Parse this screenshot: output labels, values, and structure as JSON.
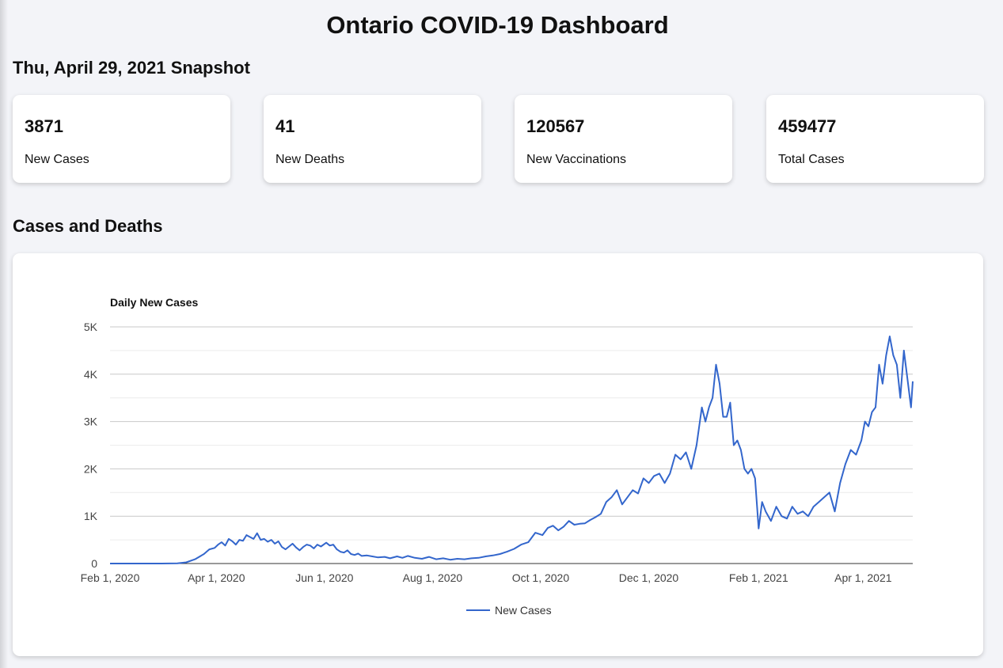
{
  "header": {
    "title": "Ontario COVID-19 Dashboard"
  },
  "snapshot": {
    "title": "Thu, April 29, 2021 Snapshot",
    "cards": [
      {
        "value": "3871",
        "label": "New Cases"
      },
      {
        "value": "41",
        "label": "New Deaths"
      },
      {
        "value": "120567",
        "label": "New Vaccinations"
      },
      {
        "value": "459477",
        "label": "Total Cases"
      }
    ]
  },
  "section": {
    "title": "Cases and Deaths"
  },
  "chart_data": {
    "type": "line",
    "title": "Daily New Cases",
    "xlabel": "",
    "ylabel": "",
    "x_range": [
      "2020-02-01",
      "2021-04-29"
    ],
    "ylim": [
      0,
      5000
    ],
    "y_ticks": [
      {
        "value": 0,
        "label": "0"
      },
      {
        "value": 1000,
        "label": "1K"
      },
      {
        "value": 2000,
        "label": "2K"
      },
      {
        "value": 3000,
        "label": "3K"
      },
      {
        "value": 4000,
        "label": "4K"
      },
      {
        "value": 5000,
        "label": "5K"
      }
    ],
    "x_ticks": [
      {
        "date": "2020-02-01",
        "label": "Feb 1, 2020"
      },
      {
        "date": "2020-04-01",
        "label": "Apr 1, 2020"
      },
      {
        "date": "2020-06-01",
        "label": "Jun 1, 2020"
      },
      {
        "date": "2020-08-01",
        "label": "Aug 1, 2020"
      },
      {
        "date": "2020-10-01",
        "label": "Oct 1, 2020"
      },
      {
        "date": "2020-12-01",
        "label": "Dec 1, 2020"
      },
      {
        "date": "2021-02-01",
        "label": "Feb 1, 2021"
      },
      {
        "date": "2021-04-01",
        "label": "Apr 1, 2021"
      }
    ],
    "grid": true,
    "legend": "bottom",
    "series": [
      {
        "name": "New Cases",
        "color": "#3366cc",
        "points": [
          [
            "2020-02-01",
            0
          ],
          [
            "2020-03-01",
            0
          ],
          [
            "2020-03-10",
            5
          ],
          [
            "2020-03-15",
            25
          ],
          [
            "2020-03-20",
            90
          ],
          [
            "2020-03-25",
            200
          ],
          [
            "2020-03-28",
            300
          ],
          [
            "2020-03-31",
            330
          ],
          [
            "2020-04-02",
            400
          ],
          [
            "2020-04-04",
            450
          ],
          [
            "2020-04-06",
            380
          ],
          [
            "2020-04-08",
            520
          ],
          [
            "2020-04-10",
            470
          ],
          [
            "2020-04-12",
            400
          ],
          [
            "2020-04-14",
            500
          ],
          [
            "2020-04-16",
            480
          ],
          [
            "2020-04-18",
            600
          ],
          [
            "2020-04-20",
            560
          ],
          [
            "2020-04-22",
            520
          ],
          [
            "2020-04-24",
            640
          ],
          [
            "2020-04-26",
            500
          ],
          [
            "2020-04-28",
            520
          ],
          [
            "2020-04-30",
            460
          ],
          [
            "2020-05-02",
            500
          ],
          [
            "2020-05-04",
            420
          ],
          [
            "2020-05-06",
            470
          ],
          [
            "2020-05-08",
            350
          ],
          [
            "2020-05-10",
            300
          ],
          [
            "2020-05-12",
            360
          ],
          [
            "2020-05-14",
            420
          ],
          [
            "2020-05-16",
            340
          ],
          [
            "2020-05-18",
            280
          ],
          [
            "2020-05-20",
            350
          ],
          [
            "2020-05-22",
            400
          ],
          [
            "2020-05-24",
            380
          ],
          [
            "2020-05-26",
            320
          ],
          [
            "2020-05-28",
            400
          ],
          [
            "2020-05-30",
            360
          ],
          [
            "2020-06-02",
            440
          ],
          [
            "2020-06-04",
            380
          ],
          [
            "2020-06-06",
            400
          ],
          [
            "2020-06-08",
            300
          ],
          [
            "2020-06-10",
            250
          ],
          [
            "2020-06-12",
            230
          ],
          [
            "2020-06-14",
            280
          ],
          [
            "2020-06-16",
            200
          ],
          [
            "2020-06-18",
            180
          ],
          [
            "2020-06-20",
            210
          ],
          [
            "2020-06-22",
            160
          ],
          [
            "2020-06-25",
            170
          ],
          [
            "2020-06-28",
            150
          ],
          [
            "2020-07-01",
            130
          ],
          [
            "2020-07-05",
            140
          ],
          [
            "2020-07-08",
            110
          ],
          [
            "2020-07-12",
            150
          ],
          [
            "2020-07-15",
            120
          ],
          [
            "2020-07-18",
            160
          ],
          [
            "2020-07-22",
            120
          ],
          [
            "2020-07-26",
            100
          ],
          [
            "2020-07-30",
            140
          ],
          [
            "2020-08-03",
            90
          ],
          [
            "2020-08-07",
            110
          ],
          [
            "2020-08-11",
            80
          ],
          [
            "2020-08-15",
            100
          ],
          [
            "2020-08-19",
            90
          ],
          [
            "2020-08-23",
            110
          ],
          [
            "2020-08-27",
            120
          ],
          [
            "2020-08-31",
            150
          ],
          [
            "2020-09-04",
            170
          ],
          [
            "2020-09-08",
            200
          ],
          [
            "2020-09-12",
            250
          ],
          [
            "2020-09-16",
            310
          ],
          [
            "2020-09-20",
            400
          ],
          [
            "2020-09-24",
            450
          ],
          [
            "2020-09-28",
            650
          ],
          [
            "2020-10-02",
            600
          ],
          [
            "2020-10-05",
            750
          ],
          [
            "2020-10-08",
            800
          ],
          [
            "2020-10-11",
            700
          ],
          [
            "2020-10-14",
            780
          ],
          [
            "2020-10-17",
            900
          ],
          [
            "2020-10-20",
            820
          ],
          [
            "2020-10-23",
            840
          ],
          [
            "2020-10-26",
            850
          ],
          [
            "2020-10-29",
            920
          ],
          [
            "2020-11-01",
            980
          ],
          [
            "2020-11-04",
            1050
          ],
          [
            "2020-11-07",
            1300
          ],
          [
            "2020-11-10",
            1400
          ],
          [
            "2020-11-13",
            1550
          ],
          [
            "2020-11-16",
            1250
          ],
          [
            "2020-11-19",
            1400
          ],
          [
            "2020-11-22",
            1550
          ],
          [
            "2020-11-25",
            1480
          ],
          [
            "2020-11-28",
            1800
          ],
          [
            "2020-12-01",
            1700
          ],
          [
            "2020-12-04",
            1850
          ],
          [
            "2020-12-07",
            1900
          ],
          [
            "2020-12-10",
            1700
          ],
          [
            "2020-12-13",
            1900
          ],
          [
            "2020-12-16",
            2300
          ],
          [
            "2020-12-19",
            2200
          ],
          [
            "2020-12-22",
            2350
          ],
          [
            "2020-12-25",
            2000
          ],
          [
            "2020-12-28",
            2500
          ],
          [
            "2020-12-31",
            3300
          ],
          [
            "2021-01-02",
            3000
          ],
          [
            "2021-01-04",
            3300
          ],
          [
            "2021-01-06",
            3500
          ],
          [
            "2021-01-08",
            4200
          ],
          [
            "2021-01-10",
            3800
          ],
          [
            "2021-01-12",
            3100
          ],
          [
            "2021-01-14",
            3100
          ],
          [
            "2021-01-16",
            3400
          ],
          [
            "2021-01-18",
            2500
          ],
          [
            "2021-01-20",
            2600
          ],
          [
            "2021-01-22",
            2400
          ],
          [
            "2021-01-24",
            2000
          ],
          [
            "2021-01-26",
            1900
          ],
          [
            "2021-01-28",
            2000
          ],
          [
            "2021-01-30",
            1800
          ],
          [
            "2021-02-01",
            740
          ],
          [
            "2021-02-03",
            1300
          ],
          [
            "2021-02-05",
            1100
          ],
          [
            "2021-02-08",
            900
          ],
          [
            "2021-02-11",
            1200
          ],
          [
            "2021-02-14",
            1000
          ],
          [
            "2021-02-17",
            950
          ],
          [
            "2021-02-20",
            1200
          ],
          [
            "2021-02-23",
            1050
          ],
          [
            "2021-02-26",
            1100
          ],
          [
            "2021-03-01",
            1000
          ],
          [
            "2021-03-04",
            1200
          ],
          [
            "2021-03-07",
            1300
          ],
          [
            "2021-03-10",
            1400
          ],
          [
            "2021-03-13",
            1500
          ],
          [
            "2021-03-16",
            1100
          ],
          [
            "2021-03-19",
            1700
          ],
          [
            "2021-03-22",
            2100
          ],
          [
            "2021-03-25",
            2400
          ],
          [
            "2021-03-28",
            2300
          ],
          [
            "2021-03-31",
            2600
          ],
          [
            "2021-04-02",
            3000
          ],
          [
            "2021-04-04",
            2900
          ],
          [
            "2021-04-06",
            3200
          ],
          [
            "2021-04-08",
            3300
          ],
          [
            "2021-04-10",
            4200
          ],
          [
            "2021-04-12",
            3800
          ],
          [
            "2021-04-14",
            4400
          ],
          [
            "2021-04-16",
            4800
          ],
          [
            "2021-04-18",
            4400
          ],
          [
            "2021-04-20",
            4200
          ],
          [
            "2021-04-22",
            3500
          ],
          [
            "2021-04-24",
            4500
          ],
          [
            "2021-04-26",
            3900
          ],
          [
            "2021-04-28",
            3300
          ],
          [
            "2021-04-29",
            3850
          ]
        ]
      }
    ]
  }
}
